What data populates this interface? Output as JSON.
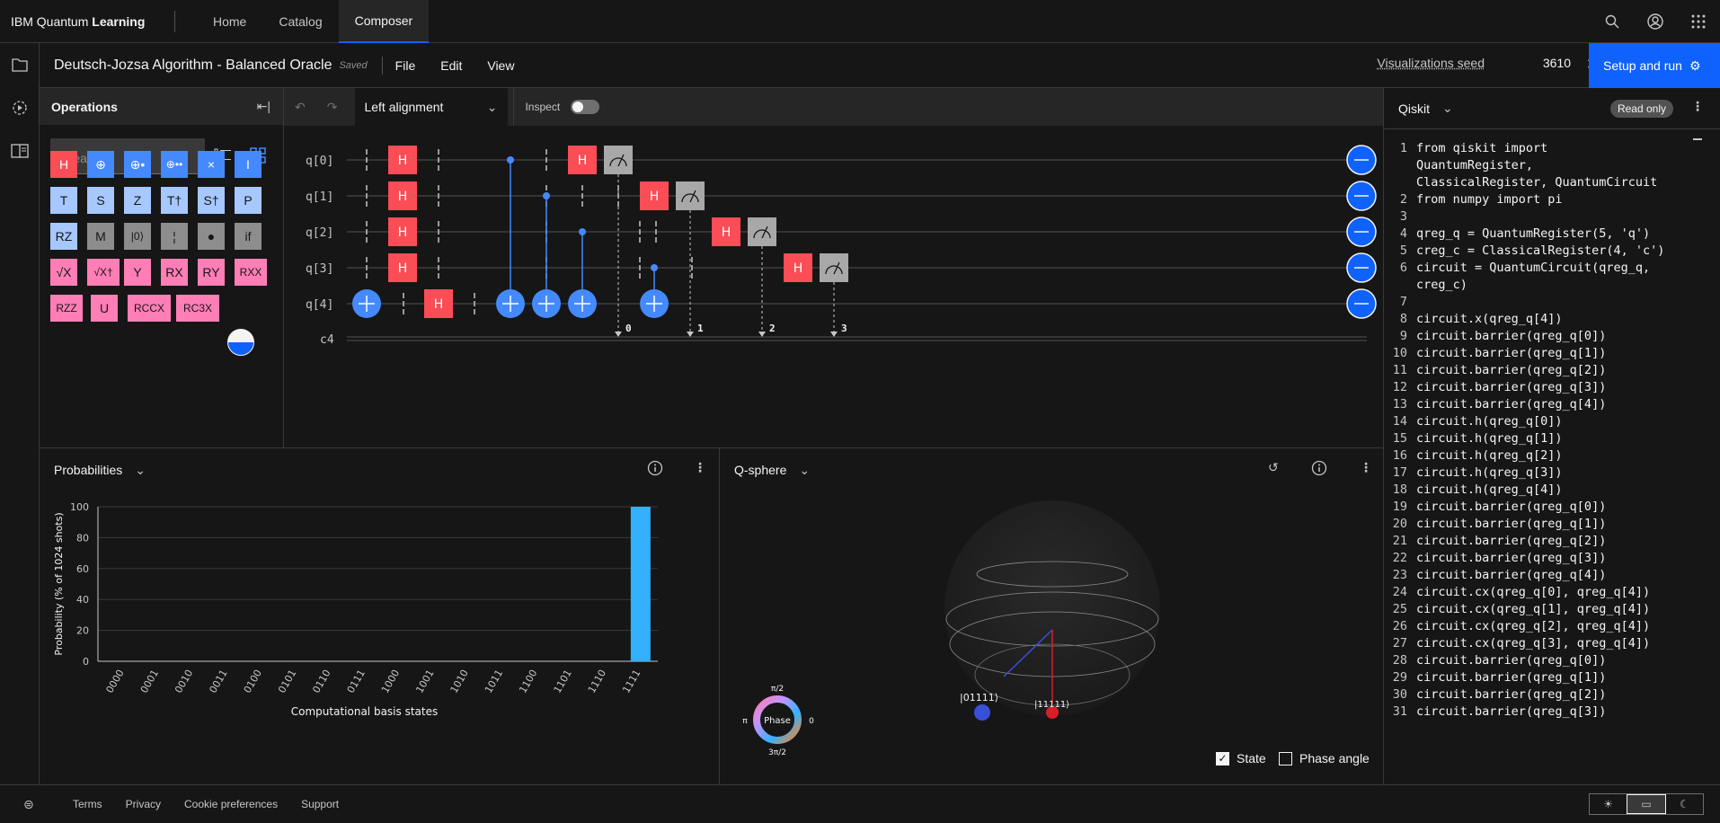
{
  "topbar": {
    "brand_prefix": "IBM Quantum",
    "brand_strong": "Learning",
    "nav": [
      "Home",
      "Catalog",
      "Composer"
    ],
    "active_nav": "Composer",
    "icons": [
      "search-icon",
      "user-icon",
      "app-switcher-icon"
    ]
  },
  "leftrail": {
    "icons": [
      "folder-icon",
      "jobs-icon",
      "docs-icon"
    ]
  },
  "toolbar": {
    "title": "Deutsch-Jozsa Algorithm - Balanced Oracle",
    "saved": "Saved",
    "menus": [
      "File",
      "Edit",
      "View"
    ],
    "seed_label": "Visualizations seed",
    "seed_value": "3610",
    "run_label": "Setup and run"
  },
  "operations": {
    "title": "Operations",
    "search_placeholder": "Search",
    "gates": [
      {
        "label": "H",
        "color": "red"
      },
      {
        "label": "⊕",
        "color": "blue"
      },
      {
        "label": "⊕•",
        "color": "blue"
      },
      {
        "label": "⊕••",
        "color": "blue"
      },
      {
        "label": "×",
        "color": "blue"
      },
      {
        "label": "I",
        "color": "blue"
      },
      {
        "label": "T",
        "color": "lblue"
      },
      {
        "label": "S",
        "color": "lblue"
      },
      {
        "label": "Z",
        "color": "lblue"
      },
      {
        "label": "T†",
        "color": "lblue"
      },
      {
        "label": "S†",
        "color": "lblue"
      },
      {
        "label": "P",
        "color": "lblue"
      },
      {
        "label": "RZ",
        "color": "lblue"
      },
      {
        "label": "M",
        "color": "gray"
      },
      {
        "label": "|0⟩",
        "color": "gray"
      },
      {
        "label": "¦",
        "color": "gray"
      },
      {
        "label": "●",
        "color": "gray"
      },
      {
        "label": "if",
        "color": "gray"
      },
      {
        "label": "√X",
        "color": "pink"
      },
      {
        "label": "√X†",
        "color": "pink"
      },
      {
        "label": "Y",
        "color": "pink"
      },
      {
        "label": "RX",
        "color": "pink"
      },
      {
        "label": "RY",
        "color": "pink"
      },
      {
        "label": "RXX",
        "color": "pink"
      },
      {
        "label": "RZZ",
        "color": "pink"
      },
      {
        "label": "U",
        "color": "pink"
      },
      {
        "label": "RCCX",
        "color": "pink"
      },
      {
        "label": "RC3X",
        "color": "pink"
      }
    ]
  },
  "circuit": {
    "alignment": "Left alignment",
    "inspect_label": "Inspect",
    "qubits": [
      "q[0]",
      "q[1]",
      "q[2]",
      "q[3]",
      "q[4]"
    ],
    "classical": "c4",
    "classical_bits": [
      "0",
      "1",
      "2",
      "3"
    ],
    "gate_H": "H"
  },
  "code": {
    "language": "Qiskit",
    "readonly": "Read only",
    "lines": [
      {
        "n": "1",
        "t": "from qiskit import"
      },
      {
        "n": "",
        "t": "QuantumRegister,"
      },
      {
        "n": "",
        "t": "ClassicalRegister, QuantumCircuit"
      },
      {
        "n": "2",
        "t": "from numpy import pi"
      },
      {
        "n": "3",
        "t": ""
      },
      {
        "n": "4",
        "t": "qreg_q = QuantumRegister(5, 'q')"
      },
      {
        "n": "5",
        "t": "creg_c = ClassicalRegister(4, 'c')"
      },
      {
        "n": "6",
        "t": "circuit = QuantumCircuit(qreg_q,"
      },
      {
        "n": "",
        "t": "creg_c)"
      },
      {
        "n": "7",
        "t": ""
      },
      {
        "n": "8",
        "t": "circuit.x(qreg_q[4])"
      },
      {
        "n": "9",
        "t": "circuit.barrier(qreg_q[0])"
      },
      {
        "n": "10",
        "t": "circuit.barrier(qreg_q[1])"
      },
      {
        "n": "11",
        "t": "circuit.barrier(qreg_q[2])"
      },
      {
        "n": "12",
        "t": "circuit.barrier(qreg_q[3])"
      },
      {
        "n": "13",
        "t": "circuit.barrier(qreg_q[4])"
      },
      {
        "n": "14",
        "t": "circuit.h(qreg_q[0])"
      },
      {
        "n": "15",
        "t": "circuit.h(qreg_q[1])"
      },
      {
        "n": "16",
        "t": "circuit.h(qreg_q[2])"
      },
      {
        "n": "17",
        "t": "circuit.h(qreg_q[3])"
      },
      {
        "n": "18",
        "t": "circuit.h(qreg_q[4])"
      },
      {
        "n": "19",
        "t": "circuit.barrier(qreg_q[0])"
      },
      {
        "n": "20",
        "t": "circuit.barrier(qreg_q[1])"
      },
      {
        "n": "21",
        "t": "circuit.barrier(qreg_q[2])"
      },
      {
        "n": "22",
        "t": "circuit.barrier(qreg_q[3])"
      },
      {
        "n": "23",
        "t": "circuit.barrier(qreg_q[4])"
      },
      {
        "n": "24",
        "t": "circuit.cx(qreg_q[0], qreg_q[4])"
      },
      {
        "n": "25",
        "t": "circuit.cx(qreg_q[1], qreg_q[4])"
      },
      {
        "n": "26",
        "t": "circuit.cx(qreg_q[2], qreg_q[4])"
      },
      {
        "n": "27",
        "t": "circuit.cx(qreg_q[3], qreg_q[4])"
      },
      {
        "n": "28",
        "t": "circuit.barrier(qreg_q[0])"
      },
      {
        "n": "29",
        "t": "circuit.barrier(qreg_q[1])"
      },
      {
        "n": "30",
        "t": "circuit.barrier(qreg_q[2])"
      },
      {
        "n": "31",
        "t": "circuit.barrier(qreg_q[3])"
      }
    ]
  },
  "probabilities": {
    "title": "Probabilities"
  },
  "chart_data": {
    "type": "bar",
    "categories": [
      "0000",
      "0001",
      "0010",
      "0011",
      "0100",
      "0101",
      "0110",
      "0111",
      "1000",
      "1001",
      "1010",
      "1011",
      "1100",
      "1101",
      "1110",
      "1111"
    ],
    "values": [
      0,
      0,
      0,
      0,
      0,
      0,
      0,
      0,
      0,
      0,
      0,
      0,
      0,
      0,
      0,
      100
    ],
    "xlabel": "Computational basis states",
    "ylabel": "Probability (% of 1024 shots)",
    "ylim": [
      0,
      100
    ],
    "yticks": [
      0,
      20,
      40,
      60,
      80,
      100
    ],
    "grid": true,
    "color": "#33b1ff"
  },
  "qsphere": {
    "title": "Q-sphere",
    "states": [
      "|01111⟩",
      "|11111⟩"
    ],
    "phase_label": "Phase",
    "phase_ticks": [
      "π/2",
      "0",
      "3π/2",
      "π"
    ],
    "state_checkbox": "State",
    "phase_checkbox": "Phase angle",
    "state_checked": true,
    "phase_checked": false
  },
  "footer": {
    "links": [
      "Terms",
      "Privacy",
      "Cookie preferences",
      "Support"
    ]
  },
  "colors": {
    "accent": "#0f62fe",
    "bar": "#33b1ff",
    "gate_red": "#fa4d56",
    "gate_blue": "#4589ff"
  }
}
